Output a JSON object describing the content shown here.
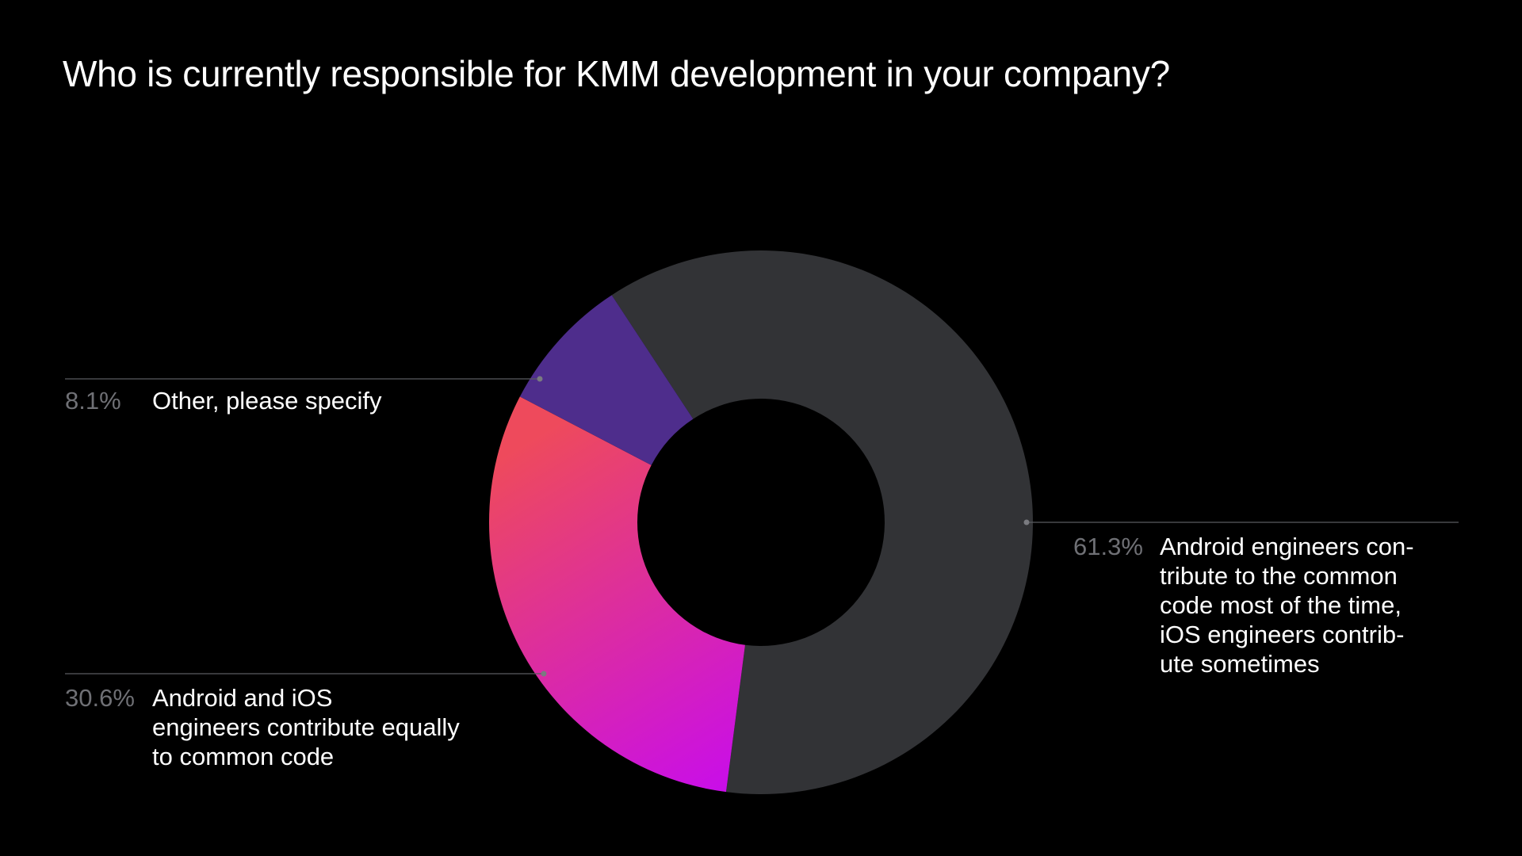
{
  "chart_data": {
    "type": "pie",
    "style": "donut",
    "title": "Who is currently responsible for KMM development in your company?",
    "legend": "none",
    "slices": [
      {
        "label_lines": [
          "Android engineers con-",
          "tribute to the common",
          "code most of the time,",
          "iOS engineers contrib-",
          "ute sometimes"
        ],
        "value": 61.3,
        "value_label": "61.3%",
        "color": "#323336"
      },
      {
        "label_lines": [
          "Android and iOS",
          "engineers contribute equally",
          "to common code"
        ],
        "value": 30.6,
        "value_label": "30.6%",
        "gradient": [
          "#c90ee8",
          "#ee4a5c"
        ]
      },
      {
        "label_lines": [
          "Other, please specify"
        ],
        "value": 8.1,
        "value_label": "8.1%",
        "color": "#4e2d8c"
      }
    ]
  },
  "colors": {
    "background": "#000000",
    "title": "#ffffff",
    "value_label": "#6f7075",
    "leader_line": "#5a5b60",
    "leader_dot": "#7a7b80"
  }
}
